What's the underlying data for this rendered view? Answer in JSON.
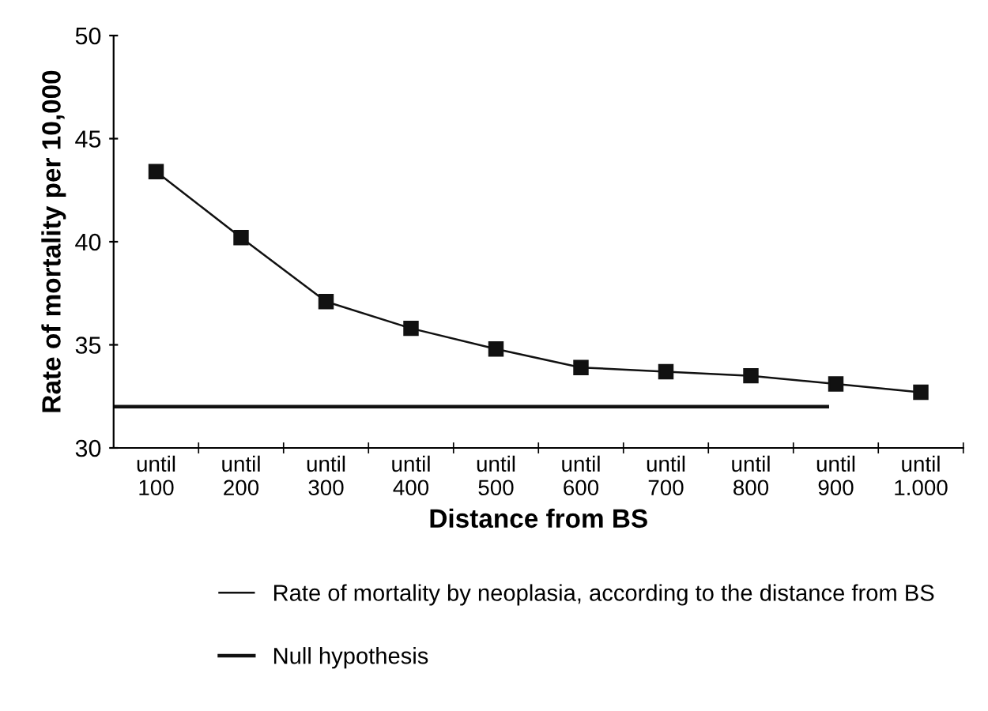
{
  "chart_data": {
    "type": "line",
    "xlabel": "Distance from BS",
    "ylabel": "Rate of mortality per 10,000",
    "categories": [
      "until\n100",
      "until\n200",
      "until\n300",
      "until\n400",
      "until\n500",
      "until\n600",
      "until\n700",
      "until\n800",
      "until\n900",
      "until\n1.000"
    ],
    "series": [
      {
        "name": "Rate of mortality by neoplasia, according to the distance from BS",
        "color": "#111111",
        "values": [
          43.4,
          40.2,
          37.1,
          35.8,
          34.8,
          33.9,
          33.7,
          33.5,
          33.1,
          32.7
        ]
      }
    ],
    "ref_lines": [
      {
        "axis": "y",
        "value": 32,
        "label": "Null hypothesis",
        "color": "#111111"
      }
    ],
    "ylim": [
      30,
      50
    ],
    "yticks": [
      30,
      35,
      40,
      45,
      50
    ],
    "marker": "square",
    "line_style": "solid",
    "legend": "bottom",
    "grid": false
  }
}
